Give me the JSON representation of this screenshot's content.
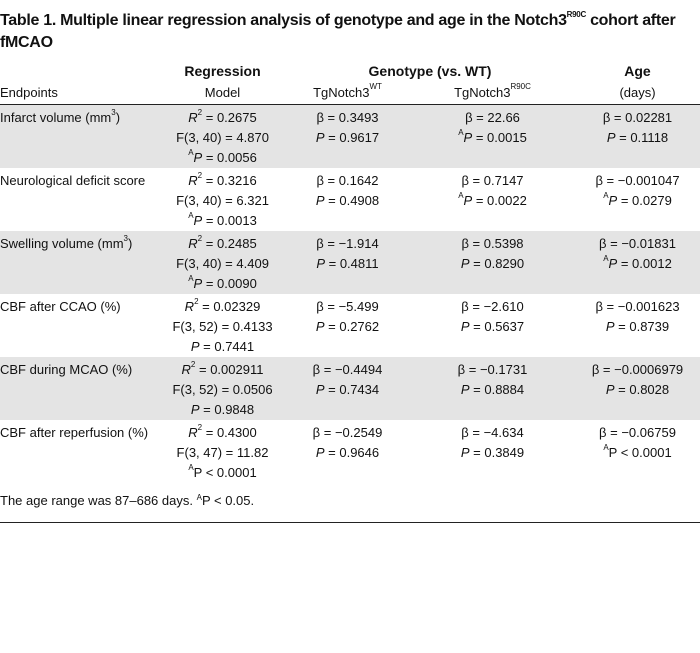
{
  "title": [
    "Table 1. Multiple linear regression analysis of genotype and age in the Notch3",
    {
      "t": "R90C",
      "s": "sup"
    },
    " cohort after fMCAO"
  ],
  "header": {
    "regression": "Regression",
    "genotype": "Genotype (vs. WT)",
    "age": "Age",
    "endpoints": "Endpoints",
    "model": "Model",
    "wt": [
      "TgNotch3",
      {
        "t": "WT",
        "s": "sup"
      }
    ],
    "r90c": [
      "TgNotch3",
      {
        "t": "R90C",
        "s": "sup"
      }
    ],
    "days": "(days)"
  },
  "rows": [
    [
      [
        [
          "Infarct volume (mm",
          {
            "t": "3",
            "s": "sup"
          },
          ")"
        ]
      ],
      [
        [
          {
            "t": "R",
            "s": "i"
          },
          {
            "t": "2",
            "s": "sup"
          },
          " = 0.2675"
        ],
        [
          "F(3, 40) = 4.870"
        ],
        [
          {
            "t": "A",
            "s": "sup"
          },
          {
            "t": "P",
            "s": "i"
          },
          " = 0.0056"
        ]
      ],
      [
        [
          "β = 0.3493"
        ],
        [
          {
            "t": "P",
            "s": "i"
          },
          " = 0.9617"
        ]
      ],
      [
        [
          "β = 22.66"
        ],
        [
          {
            "t": "A",
            "s": "sup"
          },
          {
            "t": "P",
            "s": "i"
          },
          " = 0.0015"
        ]
      ],
      [
        [
          "β = 0.02281"
        ],
        [
          {
            "t": "P",
            "s": "i"
          },
          " = 0.1118"
        ]
      ]
    ],
    [
      [
        [
          "Neurological deficit score"
        ]
      ],
      [
        [
          {
            "t": "R",
            "s": "i"
          },
          {
            "t": "2",
            "s": "sup"
          },
          " = 0.3216"
        ],
        [
          "F(3, 40) = 6.321"
        ],
        [
          {
            "t": "A",
            "s": "sup"
          },
          {
            "t": "P",
            "s": "i"
          },
          " = 0.0013"
        ]
      ],
      [
        [
          "β = 0.1642"
        ],
        [
          {
            "t": "P",
            "s": "i"
          },
          " = 0.4908"
        ]
      ],
      [
        [
          "β = 0.7147"
        ],
        [
          {
            "t": "A",
            "s": "sup"
          },
          {
            "t": "P",
            "s": "i"
          },
          " = 0.0022"
        ]
      ],
      [
        [
          "β = −0.001047"
        ],
        [
          {
            "t": "A",
            "s": "sup"
          },
          {
            "t": "P",
            "s": "i"
          },
          " = 0.0279"
        ]
      ]
    ],
    [
      [
        [
          "Swelling volume (mm",
          {
            "t": "3",
            "s": "sup"
          },
          ")"
        ]
      ],
      [
        [
          {
            "t": "R",
            "s": "i"
          },
          {
            "t": "2",
            "s": "sup"
          },
          " = 0.2485"
        ],
        [
          "F(3, 40) = 4.409"
        ],
        [
          {
            "t": "A",
            "s": "sup"
          },
          {
            "t": "P",
            "s": "i"
          },
          " = 0.0090"
        ]
      ],
      [
        [
          "β = −1.914"
        ],
        [
          {
            "t": "P",
            "s": "i"
          },
          " = 0.4811"
        ]
      ],
      [
        [
          "β = 0.5398"
        ],
        [
          {
            "t": "P",
            "s": "i"
          },
          " = 0.8290"
        ]
      ],
      [
        [
          "β = −0.01831"
        ],
        [
          {
            "t": "A",
            "s": "sup"
          },
          {
            "t": "P",
            "s": "i"
          },
          " = 0.0012"
        ]
      ]
    ],
    [
      [
        [
          "CBF after CCAO (%)"
        ]
      ],
      [
        [
          {
            "t": "R",
            "s": "i"
          },
          {
            "t": "2",
            "s": "sup"
          },
          " = 0.02329"
        ],
        [
          "F(3, 52) = 0.4133"
        ],
        [
          {
            "t": "P",
            "s": "i"
          },
          " = 0.7441"
        ]
      ],
      [
        [
          "β = −5.499"
        ],
        [
          {
            "t": "P",
            "s": "i"
          },
          " = 0.2762"
        ]
      ],
      [
        [
          "β = −2.610"
        ],
        [
          {
            "t": "P",
            "s": "i"
          },
          " = 0.5637"
        ]
      ],
      [
        [
          "β = −0.001623"
        ],
        [
          {
            "t": "P",
            "s": "i"
          },
          " = 0.8739"
        ]
      ]
    ],
    [
      [
        [
          "CBF during MCAO (%)"
        ]
      ],
      [
        [
          {
            "t": "R",
            "s": "i"
          },
          {
            "t": "2",
            "s": "sup"
          },
          " = 0.002911"
        ],
        [
          "F(3, 52) = 0.0506"
        ],
        [
          {
            "t": "P",
            "s": "i"
          },
          " = 0.9848"
        ]
      ],
      [
        [
          "β = −0.4494"
        ],
        [
          {
            "t": "P",
            "s": "i"
          },
          " = 0.7434"
        ]
      ],
      [
        [
          "β = −0.1731"
        ],
        [
          {
            "t": "P",
            "s": "i"
          },
          " = 0.8884"
        ]
      ],
      [
        [
          "β = −0.0006979"
        ],
        [
          {
            "t": "P",
            "s": "i"
          },
          " = 0.8028"
        ]
      ]
    ],
    [
      [
        [
          "CBF after reperfusion (%)"
        ]
      ],
      [
        [
          {
            "t": "R",
            "s": "i"
          },
          {
            "t": "2",
            "s": "sup"
          },
          " = 0.4300"
        ],
        [
          "F(3, 47) = 11.82"
        ],
        [
          {
            "t": "A",
            "s": "sup"
          },
          "P < 0.0001"
        ]
      ],
      [
        [
          "β = −0.2549"
        ],
        [
          {
            "t": "P",
            "s": "i"
          },
          " = 0.9646"
        ]
      ],
      [
        [
          "β = −4.634"
        ],
        [
          {
            "t": "P",
            "s": "i"
          },
          " = 0.3849"
        ]
      ],
      [
        [
          "β = −0.06759"
        ],
        [
          {
            "t": "A",
            "s": "sup"
          },
          "P < 0.0001"
        ]
      ]
    ]
  ],
  "footnote": [
    "The age range was 87–686 days. ",
    {
      "t": "A",
      "s": "sup"
    },
    "P < 0.05."
  ]
}
